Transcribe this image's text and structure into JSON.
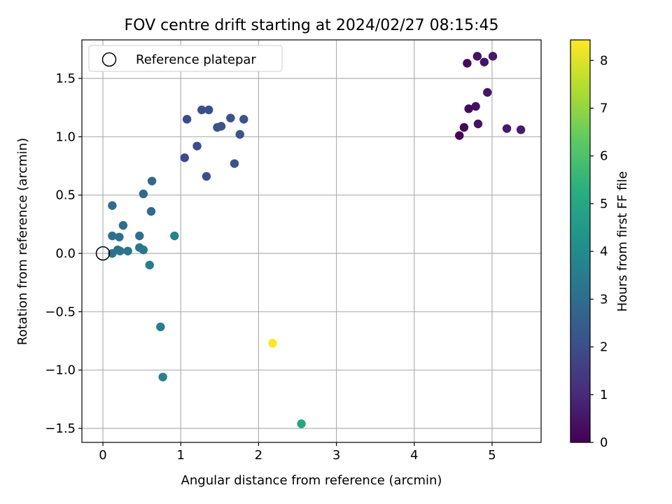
{
  "chart_data": {
    "type": "scatter",
    "title": "FOV centre drift starting at 2024/02/27 08:15:45",
    "xlabel": "Angular distance from reference (arcmin)",
    "ylabel": "Rotation from reference (arcmin)",
    "xlim": [
      -0.27,
      5.63
    ],
    "ylim": [
      -1.62,
      1.83
    ],
    "xticks": [
      0,
      1,
      2,
      3,
      4,
      5
    ],
    "xtick_labels": [
      "0",
      "1",
      "2",
      "3",
      "4",
      "5"
    ],
    "yticks": [
      -1.5,
      -1.0,
      -0.5,
      0.0,
      0.5,
      1.0,
      1.5
    ],
    "ytick_labels": [
      "−1.5",
      "−1.0",
      "−0.5",
      "0.0",
      "0.5",
      "1.0",
      "1.5"
    ],
    "grid": true,
    "legend": {
      "label": "Reference platepar",
      "location": "top-left"
    },
    "reference_point": {
      "x": 0,
      "y": 0
    },
    "colorbar": {
      "label": "Hours from first FF file",
      "colormap": "viridis",
      "range": [
        0,
        8.43
      ],
      "ticks": [
        0,
        1,
        2,
        3,
        4,
        5,
        6,
        7,
        8
      ],
      "tick_labels": [
        "0",
        "1",
        "2",
        "3",
        "4",
        "5",
        "6",
        "7",
        "8"
      ]
    },
    "points": [
      {
        "x": 4.58,
        "y": 1.01,
        "c": 0.1
      },
      {
        "x": 4.64,
        "y": 1.08,
        "c": 0.15
      },
      {
        "x": 4.68,
        "y": 1.63,
        "c": 0.2
      },
      {
        "x": 4.7,
        "y": 1.24,
        "c": 0.25
      },
      {
        "x": 4.79,
        "y": 1.26,
        "c": 0.3
      },
      {
        "x": 4.81,
        "y": 1.69,
        "c": 0.35
      },
      {
        "x": 4.82,
        "y": 1.11,
        "c": 0.4
      },
      {
        "x": 4.9,
        "y": 1.64,
        "c": 0.45
      },
      {
        "x": 4.94,
        "y": 1.38,
        "c": 0.5
      },
      {
        "x": 5.01,
        "y": 1.69,
        "c": 0.55
      },
      {
        "x": 5.19,
        "y": 1.07,
        "c": 0.6
      },
      {
        "x": 5.37,
        "y": 1.06,
        "c": 0.65
      },
      {
        "x": 1.05,
        "y": 0.82,
        "c": 1.9
      },
      {
        "x": 1.08,
        "y": 1.15,
        "c": 1.9
      },
      {
        "x": 1.21,
        "y": 0.92,
        "c": 1.95
      },
      {
        "x": 1.27,
        "y": 1.23,
        "c": 2.0
      },
      {
        "x": 1.33,
        "y": 0.66,
        "c": 2.0
      },
      {
        "x": 1.36,
        "y": 1.23,
        "c": 2.0
      },
      {
        "x": 1.47,
        "y": 1.08,
        "c": 2.05
      },
      {
        "x": 1.52,
        "y": 1.09,
        "c": 2.1
      },
      {
        "x": 1.64,
        "y": 1.16,
        "c": 2.1
      },
      {
        "x": 1.69,
        "y": 0.77,
        "c": 2.15
      },
      {
        "x": 1.76,
        "y": 1.02,
        "c": 2.2
      },
      {
        "x": 1.81,
        "y": 1.15,
        "c": 2.2
      },
      {
        "x": 0.63,
        "y": 0.62,
        "c": 2.8
      },
      {
        "x": 0.52,
        "y": 0.51,
        "c": 2.85
      },
      {
        "x": 0.62,
        "y": 0.36,
        "c": 2.9
      },
      {
        "x": 0.12,
        "y": 0.41,
        "c": 2.95
      },
      {
        "x": 0.26,
        "y": 0.24,
        "c": 3.0
      },
      {
        "x": 0.12,
        "y": 0.15,
        "c": 3.05
      },
      {
        "x": 0.21,
        "y": 0.14,
        "c": 3.1
      },
      {
        "x": 0.47,
        "y": 0.15,
        "c": 3.1
      },
      {
        "x": 0.19,
        "y": 0.03,
        "c": 3.15
      },
      {
        "x": 0.12,
        "y": 0.0,
        "c": 3.2
      },
      {
        "x": 0.22,
        "y": 0.02,
        "c": 3.2
      },
      {
        "x": 0.32,
        "y": 0.02,
        "c": 3.25
      },
      {
        "x": 0.47,
        "y": 0.05,
        "c": 3.3
      },
      {
        "x": 0.52,
        "y": 0.03,
        "c": 3.35
      },
      {
        "x": 0.6,
        "y": -0.1,
        "c": 3.5
      },
      {
        "x": 0.92,
        "y": 0.15,
        "c": 3.8
      },
      {
        "x": 0.74,
        "y": -0.63,
        "c": 3.6
      },
      {
        "x": 0.77,
        "y": -1.06,
        "c": 3.7
      },
      {
        "x": 2.55,
        "y": -1.46,
        "c": 4.9
      },
      {
        "x": 2.18,
        "y": -0.77,
        "c": 8.4
      }
    ]
  }
}
